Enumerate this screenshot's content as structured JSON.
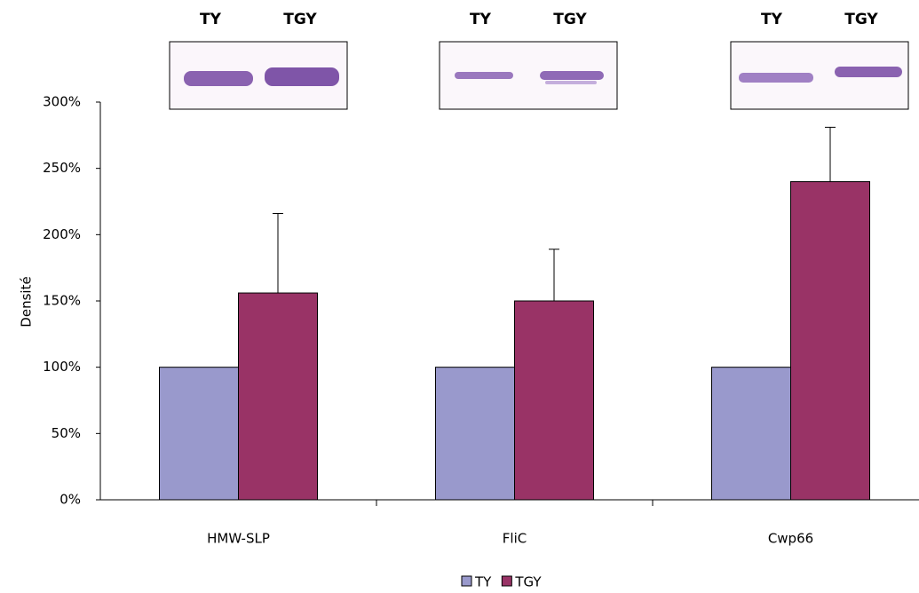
{
  "chart_data": {
    "type": "bar",
    "y_label": "Densité",
    "categories": [
      "HMW-SLP",
      "FliC",
      "Cwp66"
    ],
    "series": [
      {
        "name": "TY",
        "color": "#9999cc",
        "values": [
          100,
          100,
          100
        ]
      },
      {
        "name": "TGY",
        "color": "#993366",
        "values": [
          156,
          150,
          240
        ],
        "errors": [
          60,
          39,
          41
        ]
      }
    ],
    "ylim": [
      0,
      300
    ],
    "yticks": [
      {
        "value": 0,
        "label": "0%"
      },
      {
        "value": 50,
        "label": "50%"
      },
      {
        "value": 100,
        "label": "100%"
      },
      {
        "value": 150,
        "label": "150%"
      },
      {
        "value": 200,
        "label": "200%"
      },
      {
        "value": 250,
        "label": "250%"
      },
      {
        "value": 300,
        "label": "300%"
      }
    ],
    "blots": [
      [
        "TY",
        "TGY"
      ],
      [
        "TY",
        "TGY"
      ],
      [
        "TY",
        "TGY"
      ]
    ]
  }
}
